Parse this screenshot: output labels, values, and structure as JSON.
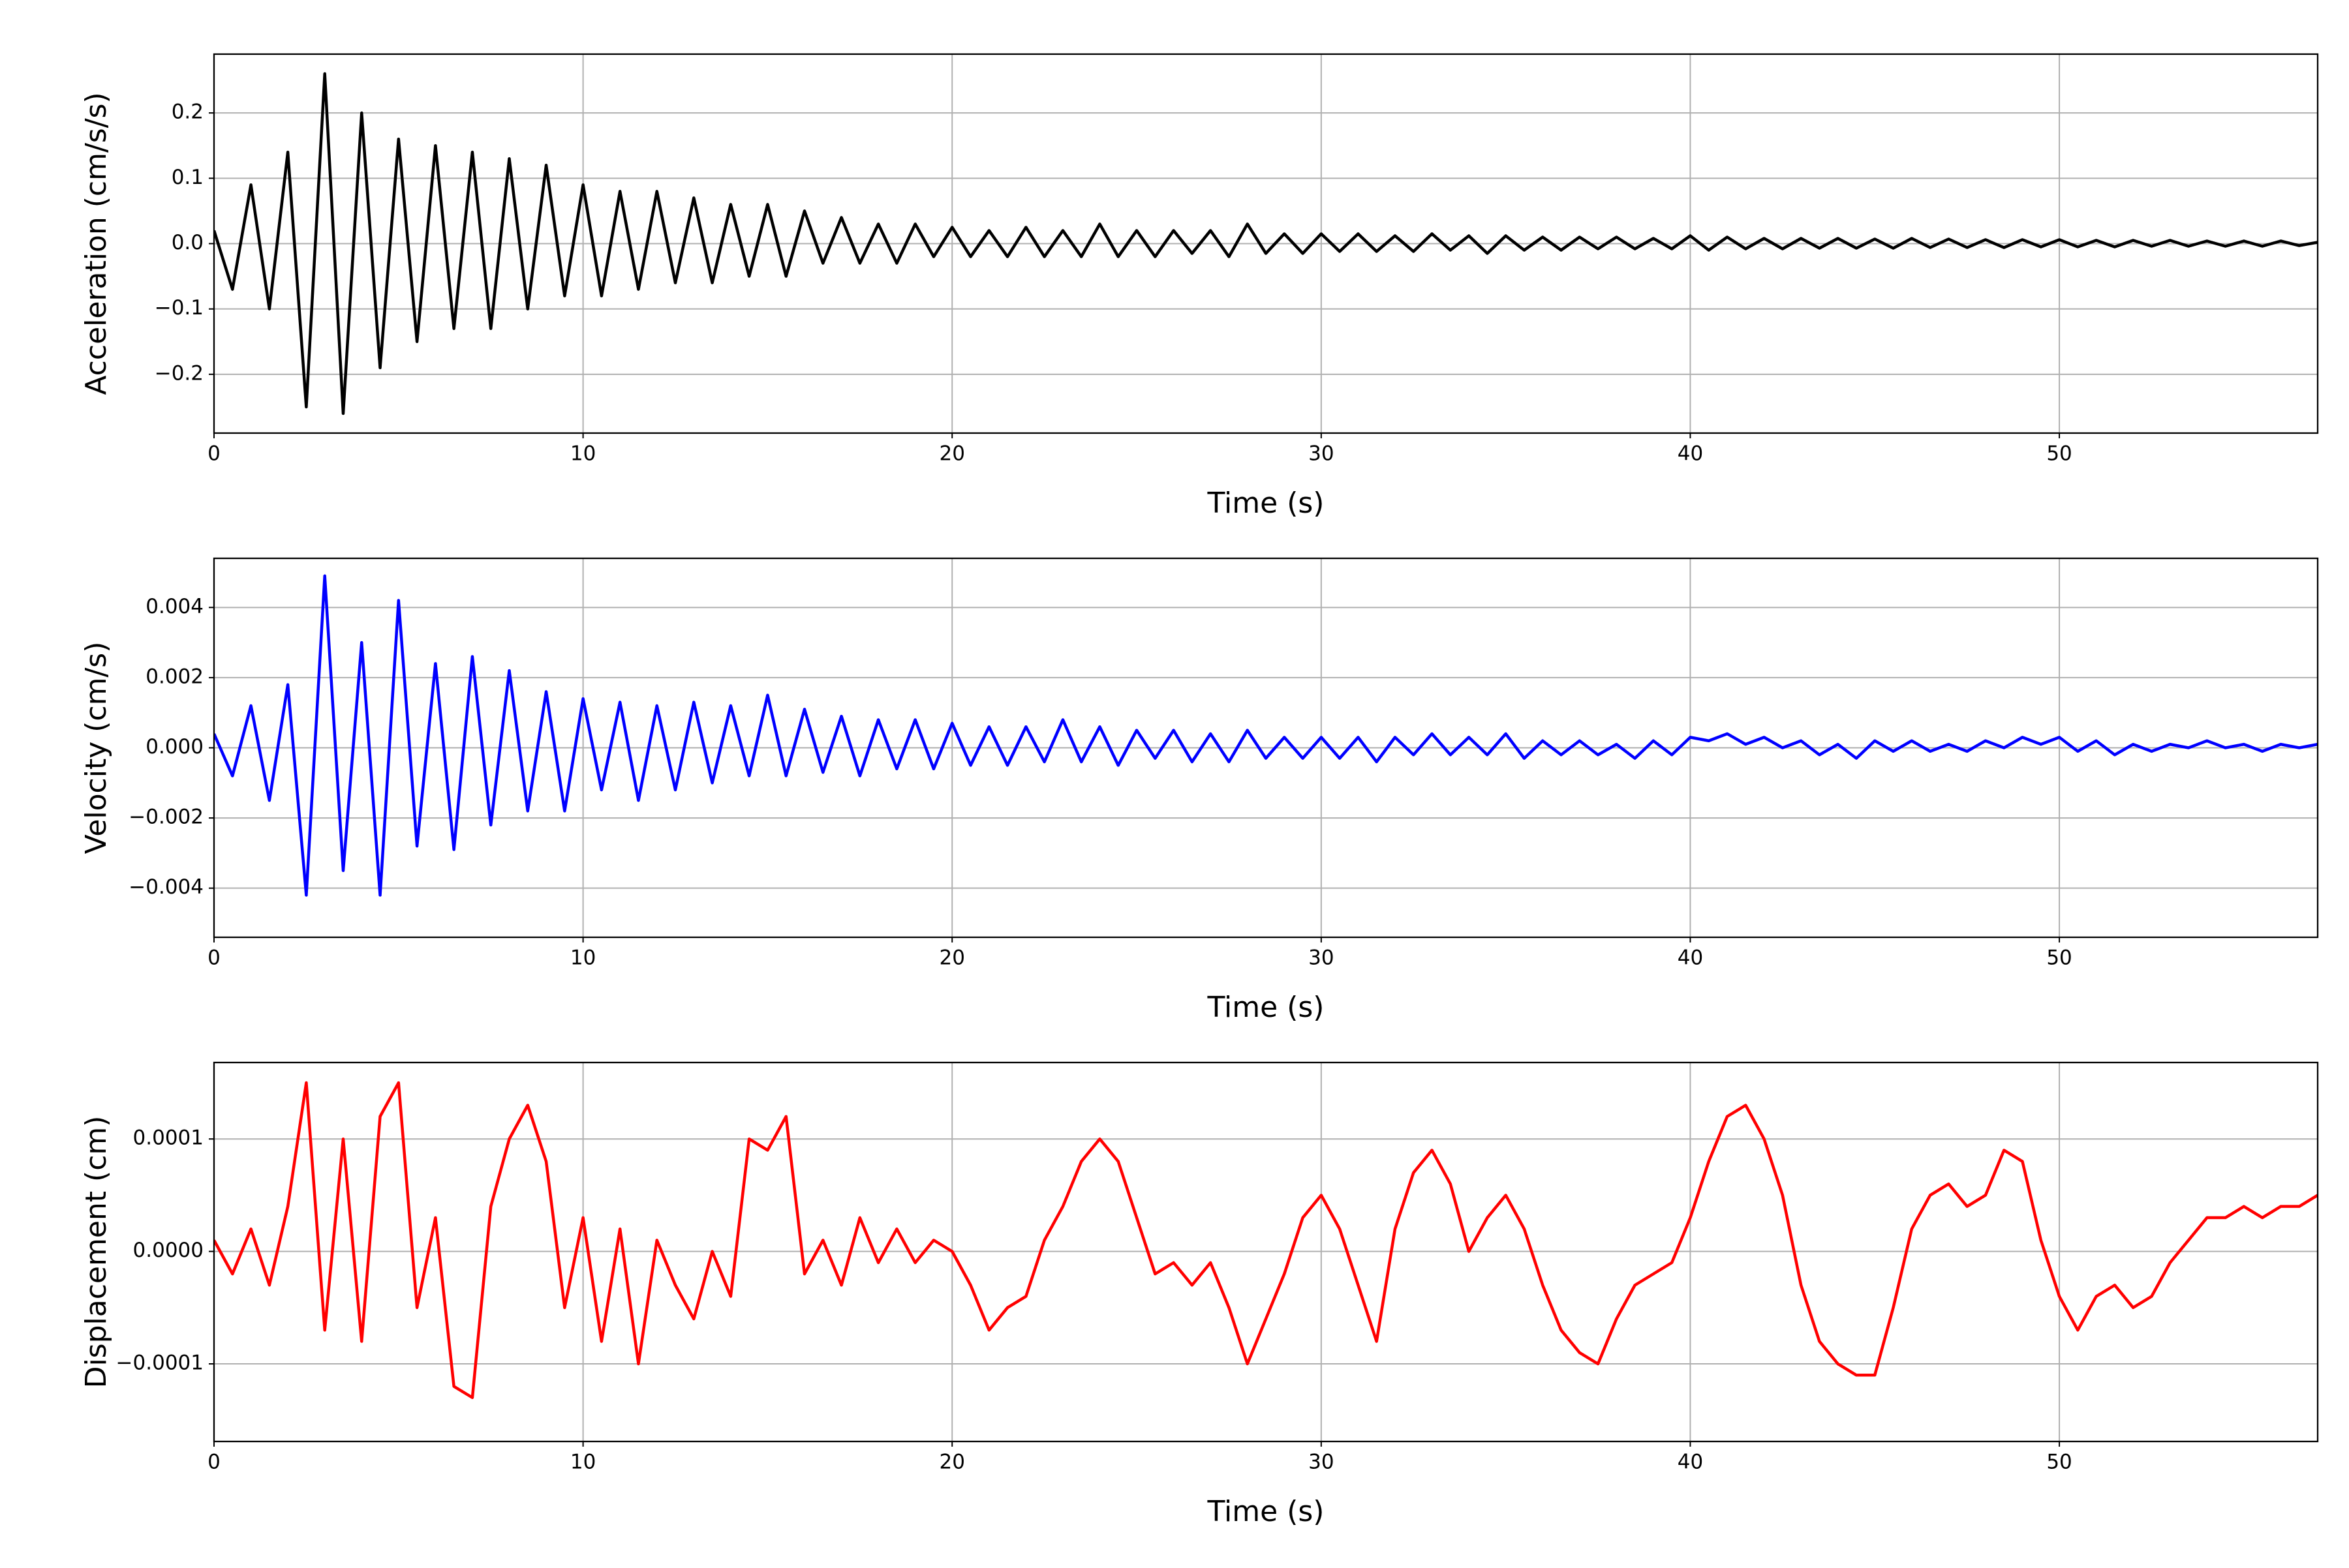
{
  "chart_data": [
    {
      "type": "line",
      "xlabel": "Time (s)",
      "ylabel": "Acceleration (cm/s/s)",
      "color": "#000000",
      "grid": true,
      "xlim": [
        0,
        57
      ],
      "xticks": [
        0,
        10,
        20,
        30,
        40,
        50
      ],
      "ylim": [
        -0.29,
        0.29
      ],
      "yticks": [
        {
          "value": -0.2,
          "label": "−0.2"
        },
        {
          "value": -0.1,
          "label": "−0.1"
        },
        {
          "value": 0,
          "label": "0.0"
        },
        {
          "value": 0.1,
          "label": "0.1"
        },
        {
          "value": 0.2,
          "label": "0.2"
        }
      ],
      "x": [
        0,
        0.5,
        1,
        1.5,
        2,
        2.5,
        3,
        3.5,
        4,
        4.5,
        5,
        5.5,
        6,
        6.5,
        7,
        7.5,
        8,
        8.5,
        9,
        9.5,
        10,
        10.5,
        11,
        11.5,
        12,
        12.5,
        13,
        13.5,
        14,
        14.5,
        15,
        15.5,
        16,
        16.5,
        17,
        17.5,
        18,
        18.5,
        19,
        19.5,
        20,
        20.5,
        21,
        21.5,
        22,
        22.5,
        23,
        23.5,
        24,
        24.5,
        25,
        25.5,
        26,
        26.5,
        27,
        27.5,
        28,
        28.5,
        29,
        29.5,
        30,
        30.5,
        31,
        31.5,
        32,
        32.5,
        33,
        33.5,
        34,
        34.5,
        35,
        35.5,
        36,
        36.5,
        37,
        37.5,
        38,
        38.5,
        39,
        39.5,
        40,
        40.5,
        41,
        41.5,
        42,
        42.5,
        43,
        43.5,
        44,
        44.5,
        45,
        45.5,
        46,
        46.5,
        47,
        47.5,
        48,
        48.5,
        49,
        49.5,
        50,
        50.5,
        51,
        51.5,
        52,
        52.5,
        53,
        53.5,
        54,
        54.5,
        55,
        55.5,
        56,
        56.5,
        57
      ],
      "values": [
        0.02,
        -0.07,
        0.09,
        -0.1,
        0.14,
        -0.25,
        0.26,
        -0.26,
        0.2,
        -0.19,
        0.16,
        -0.15,
        0.15,
        -0.13,
        0.14,
        -0.13,
        0.13,
        -0.1,
        0.12,
        -0.08,
        0.09,
        -0.08,
        0.08,
        -0.07,
        0.08,
        -0.06,
        0.07,
        -0.06,
        0.06,
        -0.05,
        0.06,
        -0.05,
        0.05,
        -0.03,
        0.04,
        -0.03,
        0.03,
        -0.03,
        0.03,
        -0.02,
        0.025,
        -0.02,
        0.02,
        -0.02,
        0.025,
        -0.02,
        0.02,
        -0.02,
        0.03,
        -0.02,
        0.02,
        -0.02,
        0.02,
        -0.015,
        0.02,
        -0.02,
        0.03,
        -0.015,
        0.015,
        -0.015,
        0.015,
        -0.012,
        0.015,
        -0.012,
        0.012,
        -0.012,
        0.015,
        -0.01,
        0.012,
        -0.015,
        0.012,
        -0.01,
        0.01,
        -0.01,
        0.01,
        -0.008,
        0.01,
        -0.008,
        0.008,
        -0.008,
        0.012,
        -0.01,
        0.01,
        -0.008,
        0.008,
        -0.008,
        0.008,
        -0.007,
        0.008,
        -0.007,
        0.007,
        -0.007,
        0.008,
        -0.006,
        0.007,
        -0.006,
        0.006,
        -0.006,
        0.006,
        -0.005,
        0.006,
        -0.005,
        0.005,
        -0.005,
        0.005,
        -0.004,
        0.005,
        -0.004,
        0.004,
        -0.004,
        0.004,
        -0.004,
        0.004,
        -0.003,
        0.002
      ]
    },
    {
      "type": "line",
      "xlabel": "Time (s)",
      "ylabel": "Velocity (cm/s)",
      "color": "#0000ff",
      "grid": true,
      "xlim": [
        0,
        57
      ],
      "xticks": [
        0,
        10,
        20,
        30,
        40,
        50
      ],
      "ylim": [
        -0.0054,
        0.0054
      ],
      "yticks": [
        {
          "value": -0.004,
          "label": "−0.004"
        },
        {
          "value": -0.002,
          "label": "−0.002"
        },
        {
          "value": 0,
          "label": "0.000"
        },
        {
          "value": 0.002,
          "label": "0.002"
        },
        {
          "value": 0.004,
          "label": "0.004"
        }
      ],
      "x": [
        0,
        0.5,
        1,
        1.5,
        2,
        2.5,
        3,
        3.5,
        4,
        4.5,
        5,
        5.5,
        6,
        6.5,
        7,
        7.5,
        8,
        8.5,
        9,
        9.5,
        10,
        10.5,
        11,
        11.5,
        12,
        12.5,
        13,
        13.5,
        14,
        14.5,
        15,
        15.5,
        16,
        16.5,
        17,
        17.5,
        18,
        18.5,
        19,
        19.5,
        20,
        20.5,
        21,
        21.5,
        22,
        22.5,
        23,
        23.5,
        24,
        24.5,
        25,
        25.5,
        26,
        26.5,
        27,
        27.5,
        28,
        28.5,
        29,
        29.5,
        30,
        30.5,
        31,
        31.5,
        32,
        32.5,
        33,
        33.5,
        34,
        34.5,
        35,
        35.5,
        36,
        36.5,
        37,
        37.5,
        38,
        38.5,
        39,
        39.5,
        40,
        40.5,
        41,
        41.5,
        42,
        42.5,
        43,
        43.5,
        44,
        44.5,
        45,
        45.5,
        46,
        46.5,
        47,
        47.5,
        48,
        48.5,
        49,
        49.5,
        50,
        50.5,
        51,
        51.5,
        52,
        52.5,
        53,
        53.5,
        54,
        54.5,
        55,
        55.5,
        56,
        56.5,
        57
      ],
      "values": [
        0.0004,
        -0.0008,
        0.0012,
        -0.0015,
        0.0018,
        -0.0042,
        0.0049,
        -0.0035,
        0.003,
        -0.0042,
        0.0042,
        -0.0028,
        0.0024,
        -0.0029,
        0.0026,
        -0.0022,
        0.0022,
        -0.0018,
        0.0016,
        -0.0018,
        0.0014,
        -0.0012,
        0.0013,
        -0.0015,
        0.0012,
        -0.0012,
        0.0013,
        -0.001,
        0.0012,
        -0.0008,
        0.0015,
        -0.0008,
        0.0011,
        -0.0007,
        0.0009,
        -0.0008,
        0.0008,
        -0.0006,
        0.0008,
        -0.0006,
        0.0007,
        -0.0005,
        0.0006,
        -0.0005,
        0.0006,
        -0.0004,
        0.0008,
        -0.0004,
        0.0006,
        -0.0005,
        0.0005,
        -0.0003,
        0.0005,
        -0.0004,
        0.0004,
        -0.0004,
        0.0005,
        -0.0003,
        0.0003,
        -0.0003,
        0.0003,
        -0.0003,
        0.0003,
        -0.0004,
        0.0003,
        -0.0002,
        0.0004,
        -0.0002,
        0.0003,
        -0.0002,
        0.0004,
        -0.0003,
        0.0002,
        -0.0002,
        0.0002,
        -0.0002,
        0.0001,
        -0.0003,
        0.0002,
        -0.0002,
        0.0003,
        0.0002,
        0.0004,
        0.0001,
        0.0003,
        0,
        0.0002,
        -0.0002,
        0.0001,
        -0.0003,
        0.0002,
        -0.0001,
        0.0002,
        -0.0001,
        0.0001,
        -0.0001,
        0.0002,
        0,
        0.0003,
        0.0001,
        0.0003,
        -0.0001,
        0.0002,
        -0.0002,
        0.0001,
        -0.0001,
        0.0001,
        0,
        0.0002,
        0,
        0.0001,
        -0.0001,
        0.0001,
        0,
        0.0001
      ]
    },
    {
      "type": "line",
      "xlabel": "Time (s)",
      "ylabel": "Displacement (cm)",
      "color": "#ff0000",
      "grid": true,
      "xlim": [
        0,
        57
      ],
      "xticks": [
        0,
        10,
        20,
        30,
        40,
        50
      ],
      "ylim": [
        -0.000169,
        0.000168
      ],
      "yticks": [
        {
          "value": -0.0001,
          "label": "−0.0001"
        },
        {
          "value": 0,
          "label": "0.0000"
        },
        {
          "value": 0.0001,
          "label": "0.0001"
        }
      ],
      "x": [
        0,
        0.5,
        1,
        1.5,
        2,
        2.5,
        3,
        3.5,
        4,
        4.5,
        5,
        5.5,
        6,
        6.5,
        7,
        7.5,
        8,
        8.5,
        9,
        9.5,
        10,
        10.5,
        11,
        11.5,
        12,
        12.5,
        13,
        13.5,
        14,
        14.5,
        15,
        15.5,
        16,
        16.5,
        17,
        17.5,
        18,
        18.5,
        19,
        19.5,
        20,
        20.5,
        21,
        21.5,
        22,
        22.5,
        23,
        23.5,
        24,
        24.5,
        25,
        25.5,
        26,
        26.5,
        27,
        27.5,
        28,
        28.5,
        29,
        29.5,
        30,
        30.5,
        31,
        31.5,
        32,
        32.5,
        33,
        33.5,
        34,
        34.5,
        35,
        35.5,
        36,
        36.5,
        37,
        37.5,
        38,
        38.5,
        39,
        39.5,
        40,
        40.5,
        41,
        41.5,
        42,
        42.5,
        43,
        43.5,
        44,
        44.5,
        45,
        45.5,
        46,
        46.5,
        47,
        47.5,
        48,
        48.5,
        49,
        49.5,
        50,
        50.5,
        51,
        51.5,
        52,
        52.5,
        53,
        53.5,
        54,
        54.5,
        55,
        55.5,
        56,
        56.5,
        57
      ],
      "values": [
        1e-05,
        -2e-05,
        2e-05,
        -3e-05,
        4e-05,
        0.00015,
        -7e-05,
        0.0001,
        -8e-05,
        0.00012,
        0.00015,
        -5e-05,
        3e-05,
        -0.00012,
        -0.00013,
        4e-05,
        0.0001,
        0.00013,
        8e-05,
        -5e-05,
        3e-05,
        -8e-05,
        2e-05,
        -0.0001,
        1e-05,
        -3e-05,
        -6e-05,
        0,
        -4e-05,
        0.0001,
        9e-05,
        0.00012,
        -2e-05,
        1e-05,
        -3e-05,
        3e-05,
        -1e-05,
        2e-05,
        -1e-05,
        1e-05,
        0,
        -3e-05,
        -7e-05,
        -5e-05,
        -4e-05,
        1e-05,
        4e-05,
        8e-05,
        0.0001,
        8e-05,
        3e-05,
        -2e-05,
        -1e-05,
        -3e-05,
        -1e-05,
        -5e-05,
        -0.0001,
        -6e-05,
        -2e-05,
        3e-05,
        5e-05,
        2e-05,
        -3e-05,
        -8e-05,
        2e-05,
        7e-05,
        9e-05,
        6e-05,
        0,
        3e-05,
        5e-05,
        2e-05,
        -3e-05,
        -7e-05,
        -9e-05,
        -0.0001,
        -6e-05,
        -3e-05,
        -2e-05,
        -1e-05,
        3e-05,
        8e-05,
        0.00012,
        0.00013,
        0.0001,
        5e-05,
        -3e-05,
        -8e-05,
        -0.0001,
        -0.00011,
        -0.00011,
        -5e-05,
        2e-05,
        5e-05,
        6e-05,
        4e-05,
        5e-05,
        9e-05,
        8e-05,
        1e-05,
        -4e-05,
        -7e-05,
        -4e-05,
        -3e-05,
        -5e-05,
        -4e-05,
        -1e-05,
        1e-05,
        3e-05,
        3e-05,
        4e-05,
        3e-05,
        4e-05,
        4e-05,
        5e-05
      ]
    }
  ]
}
